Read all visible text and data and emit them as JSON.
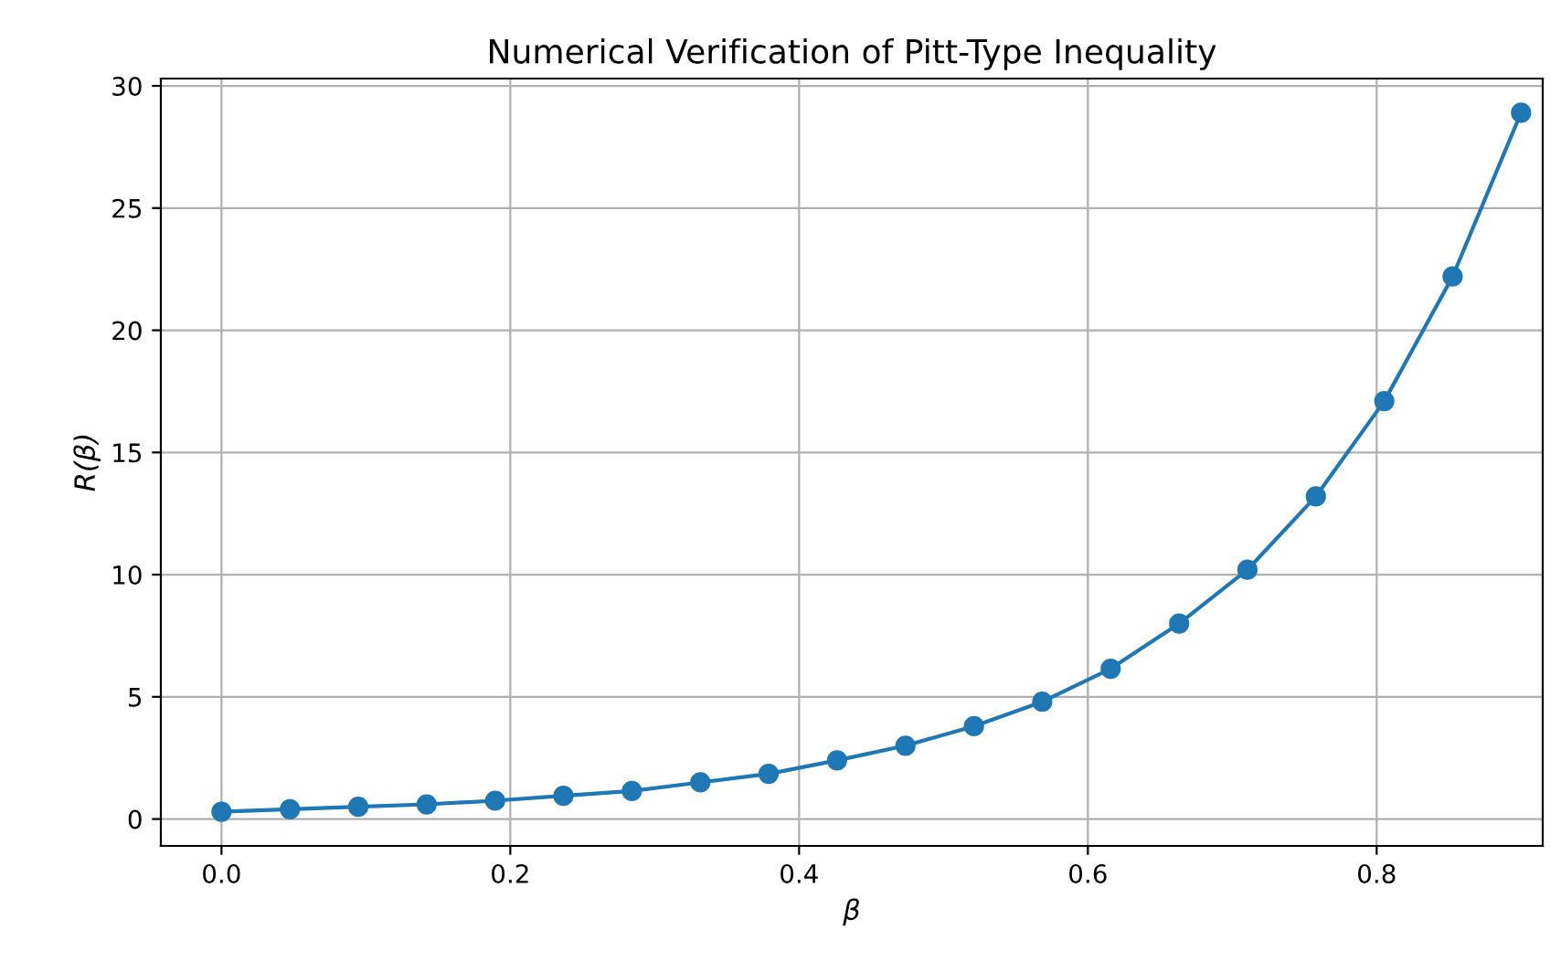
{
  "chart_data": {
    "type": "line",
    "title": "Numerical Verification of Pitt-Type Inequality",
    "xlabel": "β",
    "ylabel": "R(β)",
    "x": [
      0.0,
      0.0474,
      0.0947,
      0.1421,
      0.1895,
      0.2368,
      0.2842,
      0.3316,
      0.3789,
      0.4263,
      0.4737,
      0.5211,
      0.5684,
      0.6158,
      0.6632,
      0.7105,
      0.7579,
      0.8053,
      0.8526,
      0.9
    ],
    "series": [
      {
        "color": "#1f77b4",
        "values": [
          0.3,
          0.4,
          0.5,
          0.6,
          0.75,
          0.95,
          1.15,
          1.5,
          1.85,
          2.4,
          3.0,
          3.8,
          4.8,
          6.15,
          8.0,
          10.2,
          13.2,
          17.1,
          22.2,
          28.9
        ]
      }
    ],
    "xlim": [
      -0.042,
      0.915
    ],
    "ylim": [
      -1.1,
      30.3
    ],
    "xticks": [
      {
        "value": 0,
        "label": "0.0"
      },
      0.2,
      0.4,
      0.6,
      0.8
    ],
    "yticks": [
      0,
      5,
      10,
      15,
      20,
      25,
      30
    ],
    "grid": true,
    "marker": "circle",
    "line_style": "solid",
    "legend": false
  }
}
